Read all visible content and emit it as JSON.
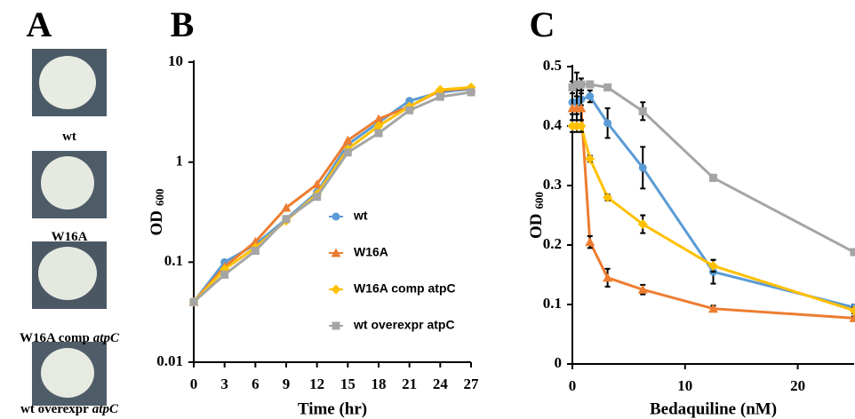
{
  "panel_a": {
    "label": "A",
    "colonies": [
      {
        "label": "wt"
      },
      {
        "label": "W16A"
      },
      {
        "label": "W16A comp",
        "gene": "atpC"
      },
      {
        "label": "wt overexpr",
        "gene": "atpC"
      }
    ]
  },
  "chart_data": [
    {
      "type": "line",
      "panel": "B",
      "xlabel": "Time (hr)",
      "ylabel": "OD",
      "ylabel_subscript": "600",
      "log_y": true,
      "legend": "right",
      "x": [
        0,
        3,
        6,
        9,
        12,
        15,
        18,
        21,
        24,
        27
      ],
      "xlim": [
        0,
        27
      ],
      "xticks": [
        0,
        3,
        6,
        9,
        12,
        15,
        18,
        21,
        24,
        27
      ],
      "ylim": [
        0.01,
        10
      ],
      "yticks": [
        0.01,
        0.1,
        1,
        10
      ],
      "series": [
        {
          "name": "wt",
          "color": "#5b9bd5",
          "marker": "circle",
          "values": [
            0.04,
            0.1,
            0.15,
            0.27,
            0.5,
            1.5,
            2.5,
            4.1,
            5.0,
            5.4
          ]
        },
        {
          "name": "W16A",
          "color": "#ed7d31",
          "marker": "triangle",
          "values": [
            0.04,
            0.09,
            0.16,
            0.35,
            0.6,
            1.65,
            2.7,
            3.6,
            5.2,
            5.5
          ]
        },
        {
          "name": "W16A comp atpC",
          "color": "#ffc000",
          "marker": "diamond",
          "values": [
            0.04,
            0.085,
            0.14,
            0.26,
            0.48,
            1.35,
            2.3,
            3.6,
            5.3,
            5.6
          ]
        },
        {
          "name": "wt overexpr atpC",
          "color": "#a5a5a5",
          "marker": "square",
          "values": [
            0.04,
            0.075,
            0.13,
            0.27,
            0.45,
            1.25,
            1.95,
            3.3,
            4.5,
            5.0
          ]
        }
      ]
    },
    {
      "type": "line",
      "panel": "C",
      "xlabel": "Bedaquiline (nM)",
      "ylabel": "OD",
      "ylabel_subscript": "600",
      "x": [
        0,
        0.39,
        0.78,
        1.56,
        3.125,
        6.25,
        12.5,
        25
      ],
      "xlim": [
        0,
        25
      ],
      "xticks": [
        0,
        10,
        20
      ],
      "ylim": [
        0,
        0.5
      ],
      "yticks": [
        0,
        0.1,
        0.2,
        0.3,
        0.4,
        0.5
      ],
      "series": [
        {
          "name": "wt",
          "color": "#5b9bd5",
          "marker": "circle",
          "values": [
            0.44,
            0.44,
            0.445,
            0.45,
            0.405,
            0.33,
            0.155,
            0.095
          ],
          "errors": [
            0.02,
            0.02,
            0.01,
            0.01,
            0.025,
            0.035,
            0.02,
            0.005
          ]
        },
        {
          "name": "W16A",
          "color": "#ed7d31",
          "marker": "triangle",
          "values": [
            0.43,
            0.43,
            0.43,
            0.205,
            0.145,
            0.125,
            0.093,
            0.077
          ],
          "errors": [
            0.03,
            0.03,
            0.03,
            0.01,
            0.015,
            0.008,
            0.005,
            0.003
          ]
        },
        {
          "name": "W16A comp atpC",
          "color": "#ffc000",
          "marker": "diamond",
          "values": [
            0.4,
            0.4,
            0.4,
            0.345,
            0.28,
            0.235,
            0.165,
            0.09
          ],
          "errors": [
            0.01,
            0.01,
            0.01,
            0.005,
            0.005,
            0.015,
            0.01,
            0.005
          ]
        },
        {
          "name": "wt overexpr atpC",
          "color": "#a5a5a5",
          "marker": "square",
          "values": [
            0.465,
            0.47,
            0.47,
            0.47,
            0.465,
            0.425,
            0.313,
            0.188
          ],
          "errors": [
            0.01,
            0.02,
            0.01,
            0.005,
            0.005,
            0.015,
            0.005,
            0.005
          ]
        }
      ]
    }
  ]
}
